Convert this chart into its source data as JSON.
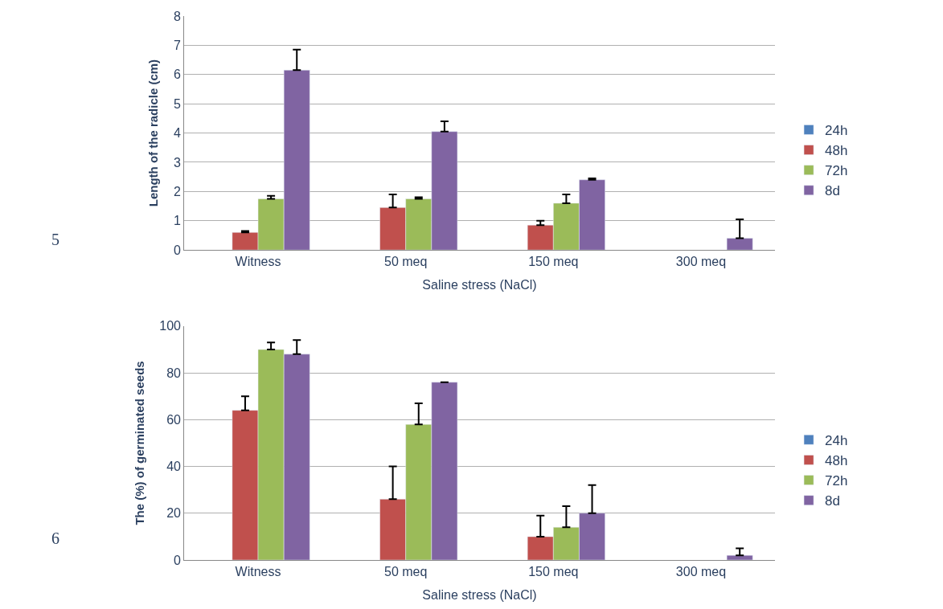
{
  "chart_data": [
    {
      "type": "bar",
      "xlabel": "Saline stress (NaCl)",
      "ylabel": "Length of the radicle (cm)",
      "categories": [
        "Witness",
        "50 meq",
        "150 meq",
        "300 meq"
      ],
      "series": [
        {
          "name": "24h",
          "color": "#4f81bd",
          "values": [
            null,
            null,
            null,
            null
          ]
        },
        {
          "name": "48h",
          "color": "#c0504d",
          "values": [
            0.6,
            1.45,
            0.85,
            null
          ],
          "errors": [
            [
              0.6,
              0.65
            ],
            [
              1.45,
              1.9
            ],
            [
              0.85,
              1.0
            ],
            null
          ]
        },
        {
          "name": "72h",
          "color": "#9bbb59",
          "values": [
            1.75,
            1.75,
            1.6,
            null
          ],
          "errors": [
            [
              1.75,
              1.85
            ],
            [
              1.75,
              1.8
            ],
            [
              1.6,
              1.9
            ],
            null
          ]
        },
        {
          "name": "8d",
          "color": "#8064a2",
          "values": [
            6.15,
            4.05,
            2.4,
            0.4
          ],
          "errors": [
            [
              6.15,
              6.85
            ],
            [
              4.05,
              4.4
            ],
            [
              2.4,
              2.45
            ],
            [
              0.4,
              1.05
            ]
          ]
        }
      ],
      "ylim": [
        0,
        8
      ],
      "yticks": [
        0,
        1,
        2,
        3,
        4,
        5,
        6,
        7,
        8
      ],
      "grid": "y",
      "legend": "right",
      "annotations": [
        "5"
      ]
    },
    {
      "type": "bar",
      "xlabel": "Saline stress (NaCl)",
      "ylabel": "The (%) of germinated seeds",
      "categories": [
        "Witness",
        "50 meq",
        "150 meq",
        "300 meq"
      ],
      "series": [
        {
          "name": "24h",
          "color": "#4f81bd",
          "values": [
            null,
            null,
            null,
            null
          ]
        },
        {
          "name": "48h",
          "color": "#c0504d",
          "values": [
            64,
            26,
            10,
            null
          ],
          "errors": [
            [
              64,
              70
            ],
            [
              26,
              40
            ],
            [
              10,
              19
            ],
            null
          ]
        },
        {
          "name": "72h",
          "color": "#9bbb59",
          "values": [
            90,
            58,
            14,
            null
          ],
          "errors": [
            [
              90,
              93
            ],
            [
              58,
              67
            ],
            [
              14,
              23
            ],
            null
          ]
        },
        {
          "name": "8d",
          "color": "#8064a2",
          "values": [
            88,
            76,
            20,
            2
          ],
          "errors": [
            [
              88,
              94
            ],
            null,
            [
              20,
              32
            ],
            [
              2,
              5
            ]
          ]
        }
      ],
      "ylim": [
        0,
        100
      ],
      "yticks": [
        0,
        20,
        40,
        60,
        80,
        100
      ],
      "grid": "y",
      "legend": "right",
      "annotations": [
        "6"
      ]
    }
  ]
}
